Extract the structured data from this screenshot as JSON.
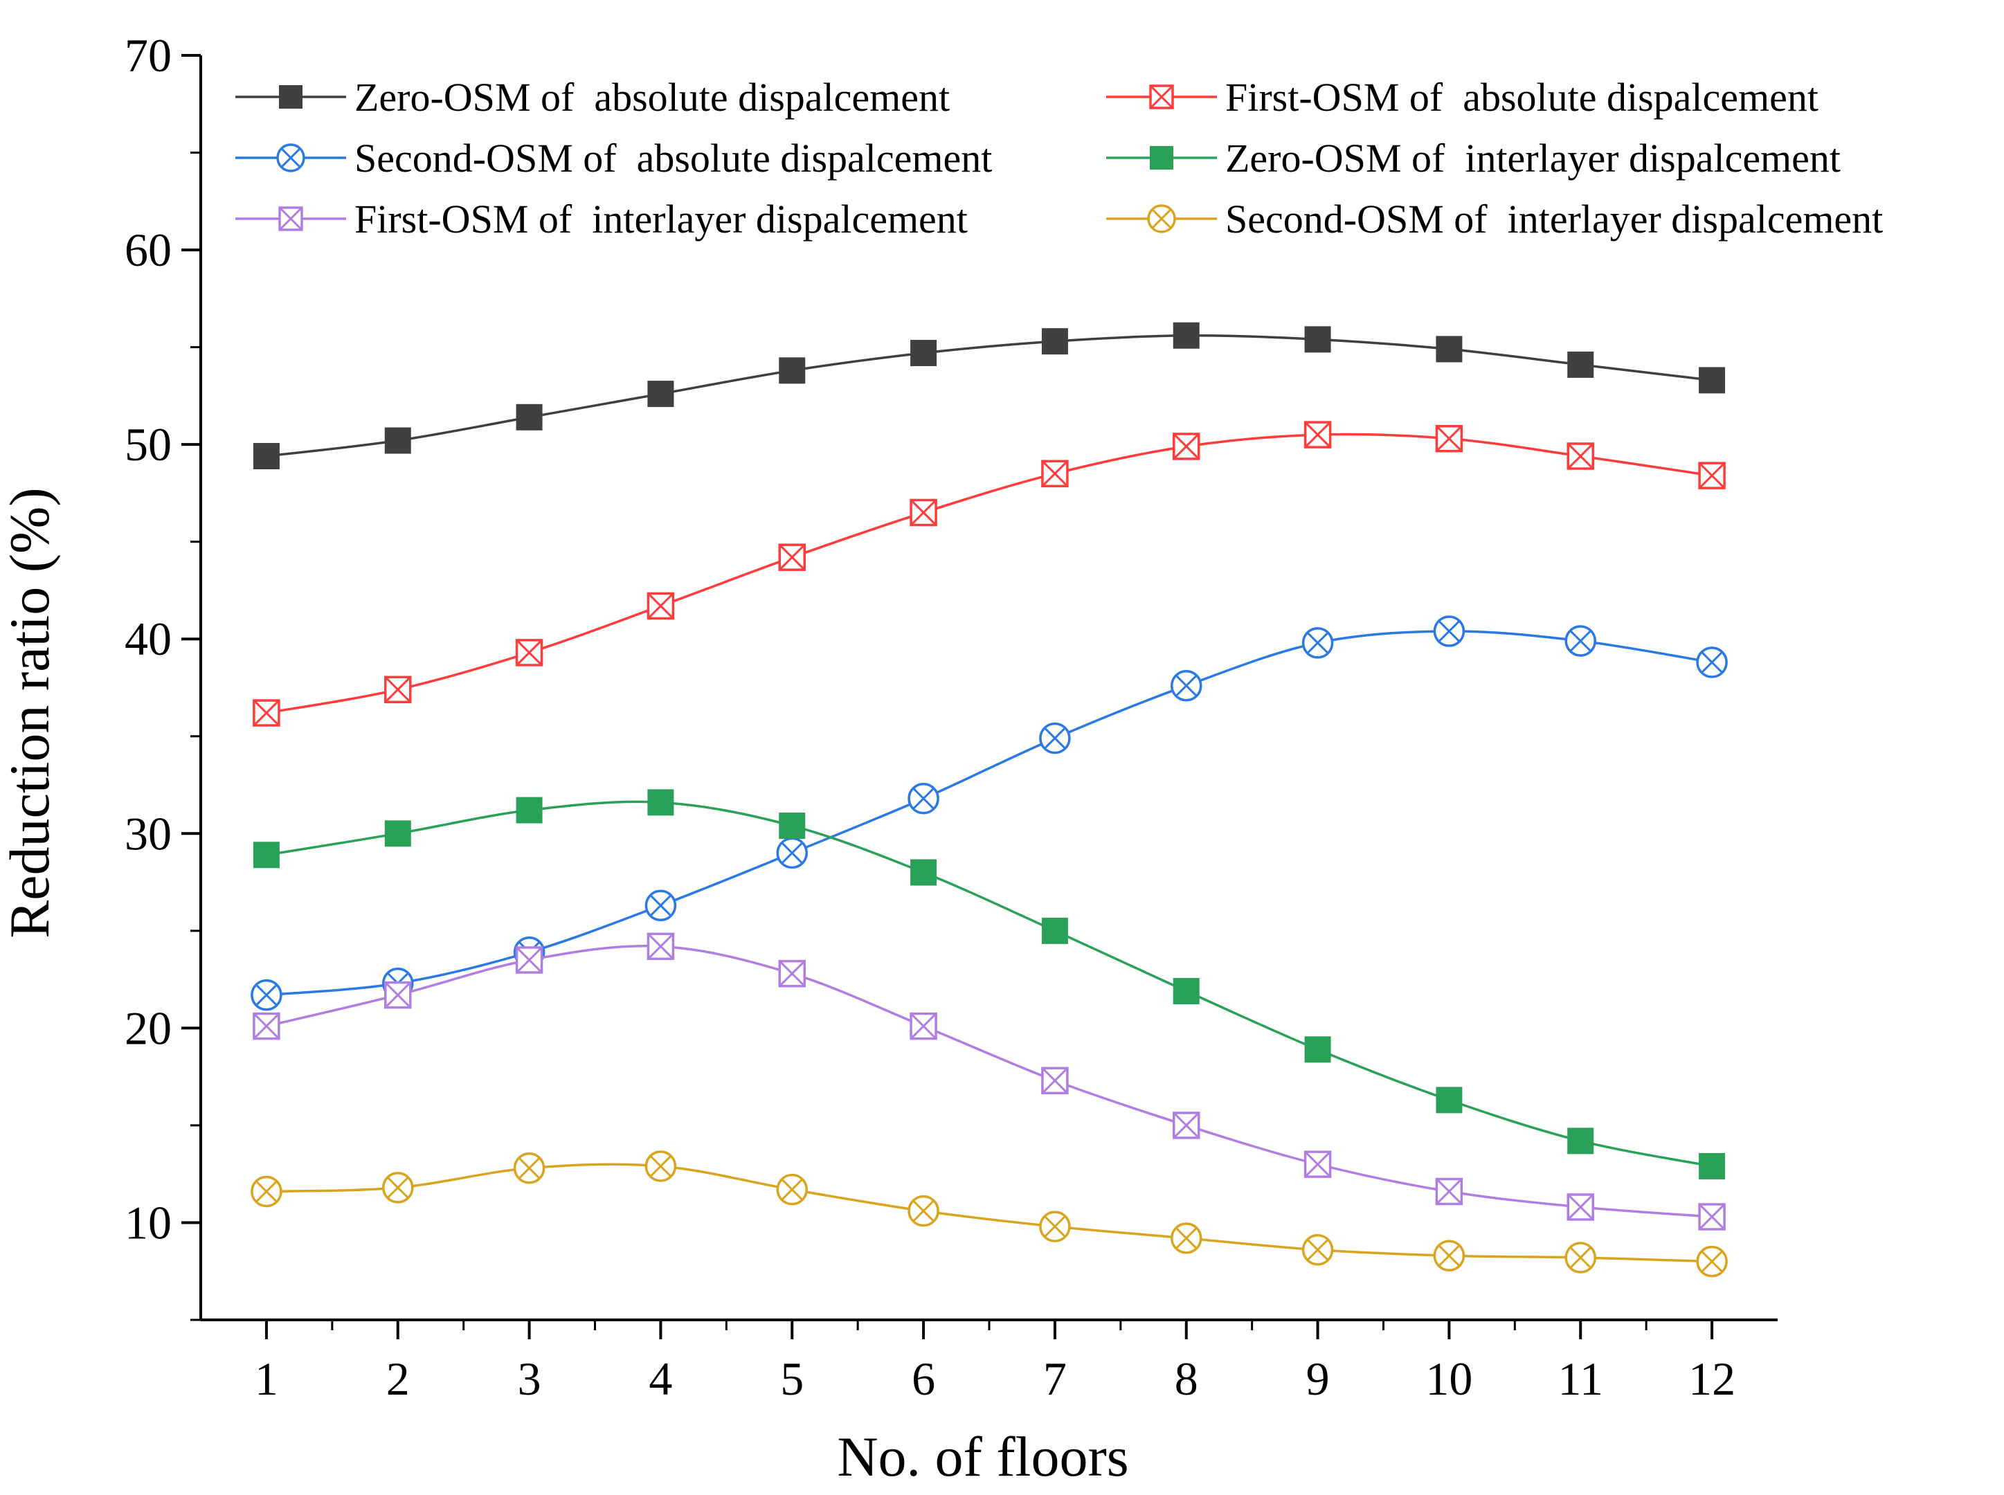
{
  "chart_data": {
    "type": "line",
    "title": "",
    "xlabel": "No. of floors",
    "ylabel": "Reduction ratio (%)",
    "x": [
      1,
      2,
      3,
      4,
      5,
      6,
      7,
      8,
      9,
      10,
      11,
      12
    ],
    "xticks": [
      "1",
      "2",
      "3",
      "4",
      "5",
      "6",
      "7",
      "8",
      "9",
      "10",
      "11",
      "12"
    ],
    "xlim": [
      0.5,
      12.5
    ],
    "ylim": [
      5,
      70
    ],
    "yticks": [
      10,
      20,
      30,
      40,
      50,
      60,
      70
    ],
    "grid": false,
    "legend_position": "top",
    "series": [
      {
        "name": "Zero-OSM of  absolute dispalcement",
        "color": "#404040",
        "marker": "filled-square",
        "values": [
          49.4,
          50.2,
          51.4,
          52.6,
          53.8,
          54.7,
          55.3,
          55.6,
          55.4,
          54.9,
          54.1,
          53.3
        ]
      },
      {
        "name": "First-OSM of  absolute dispalcement",
        "color": "#ff3b3b",
        "marker": "boxed-x",
        "values": [
          36.2,
          37.4,
          39.3,
          41.7,
          44.2,
          46.5,
          48.5,
          49.9,
          50.5,
          50.3,
          49.4,
          48.4
        ]
      },
      {
        "name": "Second-OSM of  absolute dispalcement",
        "color": "#2a7ae2",
        "marker": "circled-x",
        "values": [
          21.7,
          22.3,
          23.9,
          26.3,
          29.0,
          31.8,
          34.9,
          37.6,
          39.8,
          40.4,
          39.9,
          38.8
        ]
      },
      {
        "name": "Zero-OSM of  interlayer dispalcement",
        "color": "#2aa158",
        "marker": "filled-square",
        "values": [
          28.9,
          30.0,
          31.2,
          31.6,
          30.4,
          28.0,
          25.0,
          21.9,
          18.9,
          16.3,
          14.2,
          12.9
        ]
      },
      {
        "name": "First-OSM of  interlayer dispalcement",
        "color": "#b07ee0",
        "marker": "boxed-x",
        "values": [
          20.1,
          21.7,
          23.5,
          24.2,
          22.8,
          20.1,
          17.3,
          15.0,
          13.0,
          11.6,
          10.8,
          10.3
        ]
      },
      {
        "name": "Second-OSM of  interlayer dispalcement",
        "color": "#d9a520",
        "marker": "circled-x",
        "values": [
          11.6,
          11.8,
          12.8,
          12.9,
          11.7,
          10.6,
          9.8,
          9.2,
          8.6,
          8.3,
          8.2,
          8.0
        ]
      }
    ]
  }
}
